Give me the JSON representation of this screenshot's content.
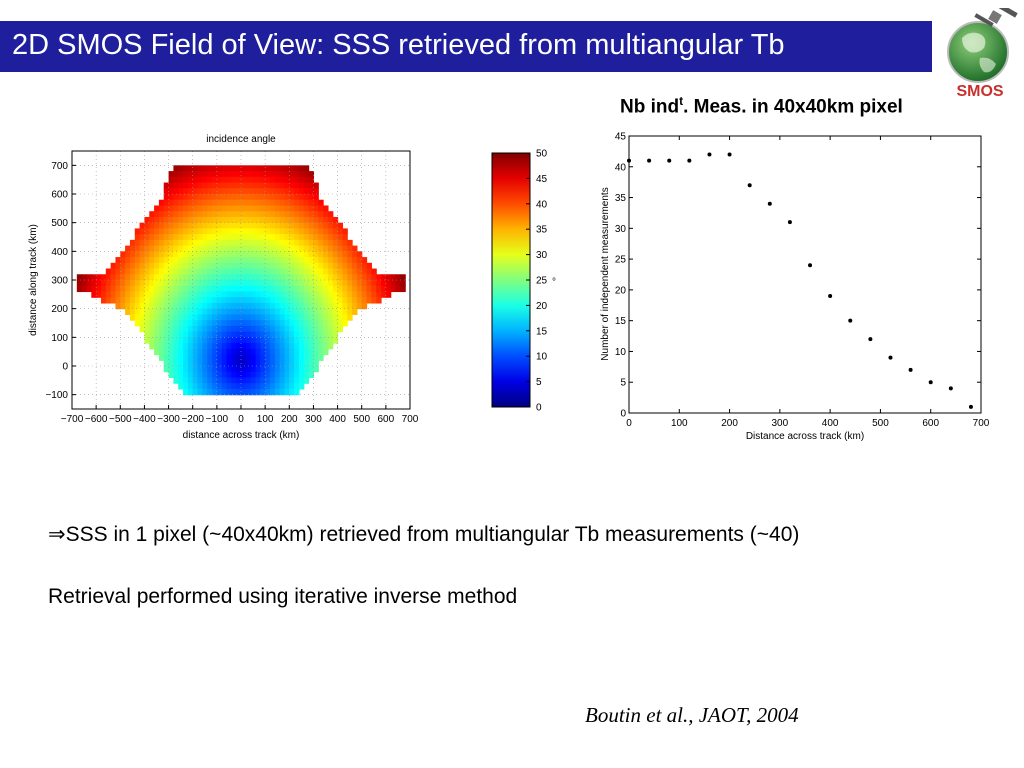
{
  "title": "2D SMOS Field of View: SSS retrieved from multiangular Tb",
  "logo_label": "SMOS",
  "subtitle_main": "Nb ind",
  "subtitle_sup": "t",
  "subtitle_rest": ". Meas. in 40x40km pixel",
  "bullet_arrow": "⇒",
  "bullet_text": "SSS in 1 pixel (~40x40km) retrieved from multiangular Tb measurements (~40)",
  "line2": "Retrieval performed using iterative inverse method",
  "citation": "Boutin et al., JAOT, 2004",
  "colors": {
    "title_bar": "#1f1f9e",
    "title_text": "#ffffff"
  },
  "chart_data": [
    {
      "type": "heatmap",
      "title": "incidence angle",
      "xlabel": "distance across track (km)",
      "ylabel": "distance along track (km)",
      "xlim": [
        -700,
        700
      ],
      "ylim": [
        -150,
        750
      ],
      "xticks": [
        "−700",
        "−600",
        "−500",
        "−400",
        "−300",
        "−200",
        "−100",
        "0",
        "100",
        "200",
        "300",
        "400",
        "500",
        "600",
        "700"
      ],
      "yticks": [
        "−100",
        "0",
        "100",
        "200",
        "300",
        "400",
        "500",
        "600",
        "700"
      ],
      "grid": true,
      "colorbar": {
        "min": 0,
        "max": 50,
        "ticks": [
          "0",
          "5",
          "10",
          "15",
          "20",
          "25",
          "30",
          "35",
          "40",
          "45",
          "50"
        ],
        "unit": "°"
      }
    },
    {
      "type": "scatter",
      "xlabel": "Distance across track (km)",
      "ylabel": "Number of independent measurements",
      "xlim": [
        0,
        700
      ],
      "ylim": [
        0,
        45
      ],
      "xticks": [
        "0",
        "100",
        "200",
        "300",
        "400",
        "500",
        "600",
        "700"
      ],
      "yticks": [
        "0",
        "5",
        "10",
        "15",
        "20",
        "25",
        "30",
        "35",
        "40",
        "45"
      ],
      "x": [
        0,
        40,
        80,
        120,
        160,
        200,
        240,
        280,
        320,
        360,
        400,
        440,
        480,
        520,
        560,
        600,
        640,
        680
      ],
      "y": [
        41,
        41,
        41,
        41,
        42,
        42,
        37,
        34,
        31,
        24,
        19,
        15,
        12,
        9,
        7,
        5,
        4,
        1
      ]
    }
  ]
}
